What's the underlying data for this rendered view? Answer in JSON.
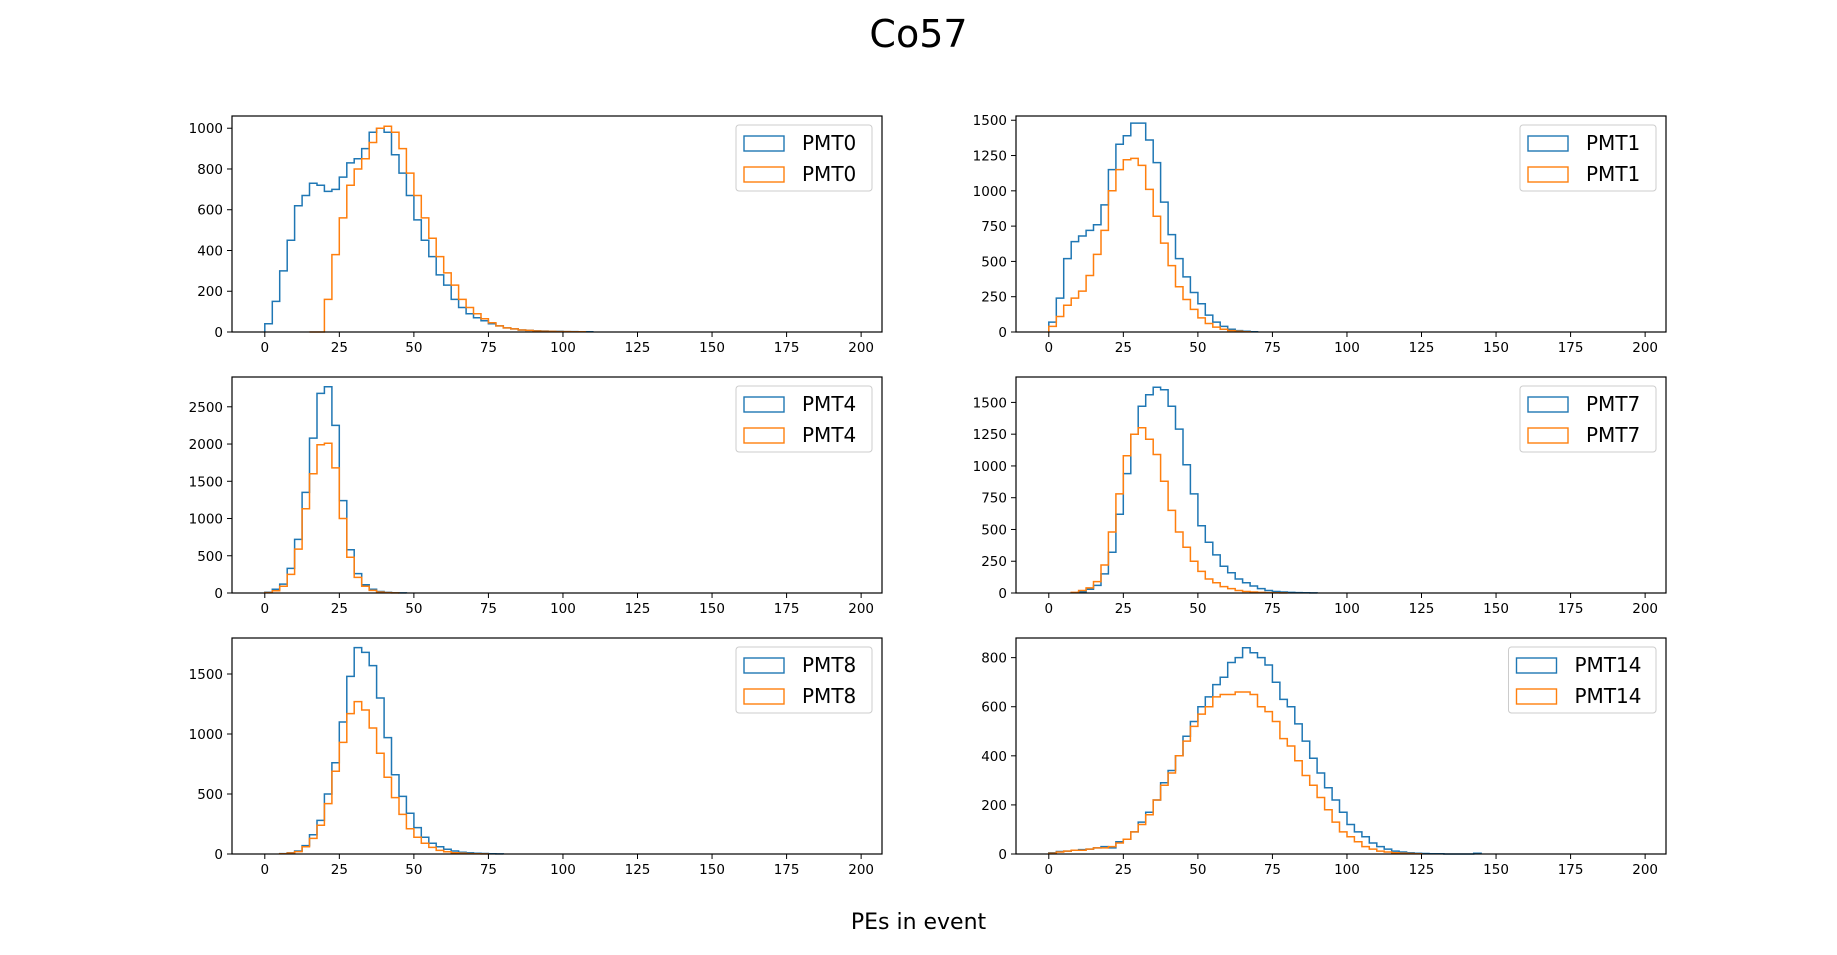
{
  "figure": {
    "title": "Co57",
    "xlabel": "PEs in event"
  },
  "colors": {
    "series_a": "#1f77b4",
    "series_b": "#ff7f0e",
    "axis": "#000000"
  },
  "chart_data": [
    {
      "type": "histogram",
      "legend": "top-right",
      "xlim": [
        -11,
        207
      ],
      "ylim": [
        0,
        1060
      ],
      "xticks": [
        0,
        25,
        50,
        75,
        100,
        125,
        150,
        175,
        200
      ],
      "yticks": [
        0,
        200,
        400,
        600,
        800,
        1000
      ],
      "bin_width": 2.5,
      "series": [
        {
          "name": "PMT0",
          "start": 0,
          "values": [
            40,
            150,
            300,
            450,
            620,
            670,
            730,
            720,
            690,
            700,
            760,
            830,
            850,
            900,
            980,
            1000,
            980,
            870,
            780,
            670,
            550,
            450,
            370,
            280,
            230,
            160,
            120,
            90,
            70,
            55,
            40,
            30,
            20,
            15,
            10,
            8,
            6,
            5,
            4,
            3,
            2,
            2,
            1,
            1
          ]
        },
        {
          "name": "PMT0",
          "start": 15,
          "values": [
            0,
            0,
            160,
            380,
            560,
            720,
            800,
            850,
            930,
            1000,
            1010,
            980,
            900,
            780,
            670,
            560,
            460,
            370,
            290,
            230,
            160,
            120,
            90,
            65,
            45,
            30,
            20,
            15,
            10,
            8,
            5,
            4,
            3,
            2,
            2,
            1,
            1
          ]
        }
      ]
    },
    {
      "type": "histogram",
      "legend": "top-right",
      "xlim": [
        -11,
        207
      ],
      "ylim": [
        0,
        1530
      ],
      "xticks": [
        0,
        25,
        50,
        75,
        100,
        125,
        150,
        175,
        200
      ],
      "yticks": [
        0,
        250,
        500,
        750,
        1000,
        1250,
        1500
      ],
      "bin_width": 2.5,
      "series": [
        {
          "name": "PMT1",
          "start": 0,
          "values": [
            70,
            240,
            520,
            640,
            680,
            720,
            760,
            900,
            1150,
            1330,
            1390,
            1480,
            1480,
            1360,
            1200,
            920,
            690,
            520,
            390,
            280,
            200,
            120,
            70,
            40,
            20,
            10,
            5,
            2
          ]
        },
        {
          "name": "PMT1",
          "start": 0,
          "values": [
            40,
            110,
            190,
            240,
            290,
            400,
            550,
            720,
            1000,
            1150,
            1220,
            1230,
            1180,
            1010,
            820,
            630,
            470,
            320,
            230,
            160,
            100,
            60,
            35,
            20,
            10,
            5,
            2
          ]
        }
      ]
    },
    {
      "type": "histogram",
      "legend": "top-right",
      "xlim": [
        -11,
        207
      ],
      "ylim": [
        0,
        2900
      ],
      "xticks": [
        0,
        25,
        50,
        75,
        100,
        125,
        150,
        175,
        200
      ],
      "yticks": [
        0,
        500,
        1000,
        1500,
        2000,
        2500
      ],
      "bin_width": 2.5,
      "series": [
        {
          "name": "PMT4",
          "start": 0,
          "values": [
            10,
            50,
            120,
            330,
            720,
            1350,
            2080,
            2680,
            2770,
            2250,
            1240,
            580,
            260,
            110,
            50,
            20,
            8,
            3,
            1
          ]
        },
        {
          "name": "PMT4",
          "start": 0,
          "values": [
            5,
            30,
            90,
            250,
            590,
            1130,
            1600,
            1990,
            2010,
            1680,
            1000,
            480,
            210,
            90,
            35,
            12,
            5,
            2
          ]
        }
      ]
    },
    {
      "type": "histogram",
      "legend": "top-right",
      "xlim": [
        -11,
        207
      ],
      "ylim": [
        0,
        1700
      ],
      "xticks": [
        0,
        25,
        50,
        75,
        100,
        125,
        150,
        175,
        200
      ],
      "yticks": [
        0,
        250,
        500,
        750,
        1000,
        1250,
        1500
      ],
      "bin_width": 2.5,
      "series": [
        {
          "name": "PMT7",
          "start": 10,
          "values": [
            10,
            30,
            60,
            150,
            320,
            620,
            940,
            1250,
            1470,
            1560,
            1620,
            1600,
            1470,
            1290,
            1010,
            780,
            530,
            400,
            300,
            210,
            160,
            110,
            80,
            55,
            35,
            20,
            12,
            8,
            5,
            3,
            2,
            1
          ]
        },
        {
          "name": "PMT7",
          "start": 7.5,
          "values": [
            5,
            20,
            40,
            90,
            220,
            480,
            780,
            1080,
            1250,
            1300,
            1210,
            1090,
            880,
            650,
            480,
            360,
            250,
            170,
            110,
            80,
            50,
            35,
            20,
            12,
            8,
            5,
            3,
            2,
            1
          ]
        }
      ]
    },
    {
      "type": "histogram",
      "legend": "top-right",
      "xlim": [
        -11,
        207
      ],
      "ylim": [
        0,
        1800
      ],
      "xticks": [
        0,
        25,
        50,
        75,
        100,
        125,
        150,
        175,
        200
      ],
      "yticks": [
        0,
        500,
        1000,
        1500
      ],
      "bin_width": 2.5,
      "series": [
        {
          "name": "PMT8",
          "start": 5,
          "values": [
            3,
            10,
            25,
            70,
            160,
            280,
            500,
            760,
            1100,
            1480,
            1720,
            1680,
            1570,
            1300,
            970,
            660,
            480,
            340,
            220,
            140,
            90,
            60,
            40,
            25,
            15,
            10,
            6,
            4,
            2,
            1
          ]
        },
        {
          "name": "PMT8",
          "start": 5,
          "values": [
            2,
            8,
            20,
            60,
            130,
            240,
            420,
            690,
            930,
            1170,
            1270,
            1200,
            1050,
            840,
            640,
            470,
            330,
            210,
            140,
            90,
            55,
            30,
            18,
            10,
            6,
            3,
            2,
            1
          ]
        }
      ]
    },
    {
      "type": "histogram",
      "legend": "top-right",
      "xlim": [
        -11,
        207
      ],
      "ylim": [
        0,
        880
      ],
      "xticks": [
        0,
        25,
        50,
        75,
        100,
        125,
        150,
        175,
        200
      ],
      "yticks": [
        0,
        200,
        400,
        600,
        800
      ],
      "bin_width": 2.5,
      "series": [
        {
          "name": "PMT14",
          "start": 0,
          "values": [
            5,
            10,
            12,
            15,
            18,
            20,
            25,
            30,
            25,
            50,
            60,
            90,
            130,
            170,
            220,
            290,
            340,
            400,
            480,
            540,
            600,
            640,
            690,
            720,
            780,
            800,
            840,
            820,
            800,
            770,
            700,
            630,
            600,
            530,
            460,
            390,
            330,
            270,
            220,
            170,
            120,
            90,
            70,
            45,
            30,
            20,
            12,
            8,
            5,
            3,
            2,
            1,
            1,
            0,
            0,
            0,
            0,
            3
          ]
        },
        {
          "name": "PMT14",
          "start": 0,
          "values": [
            3,
            8,
            12,
            15,
            15,
            20,
            25,
            25,
            30,
            45,
            60,
            90,
            120,
            160,
            220,
            280,
            330,
            400,
            460,
            520,
            570,
            600,
            640,
            650,
            650,
            660,
            660,
            650,
            600,
            580,
            540,
            470,
            440,
            380,
            320,
            280,
            230,
            180,
            130,
            90,
            70,
            50,
            30,
            20,
            12,
            8,
            5,
            3,
            2,
            1
          ]
        }
      ]
    }
  ]
}
